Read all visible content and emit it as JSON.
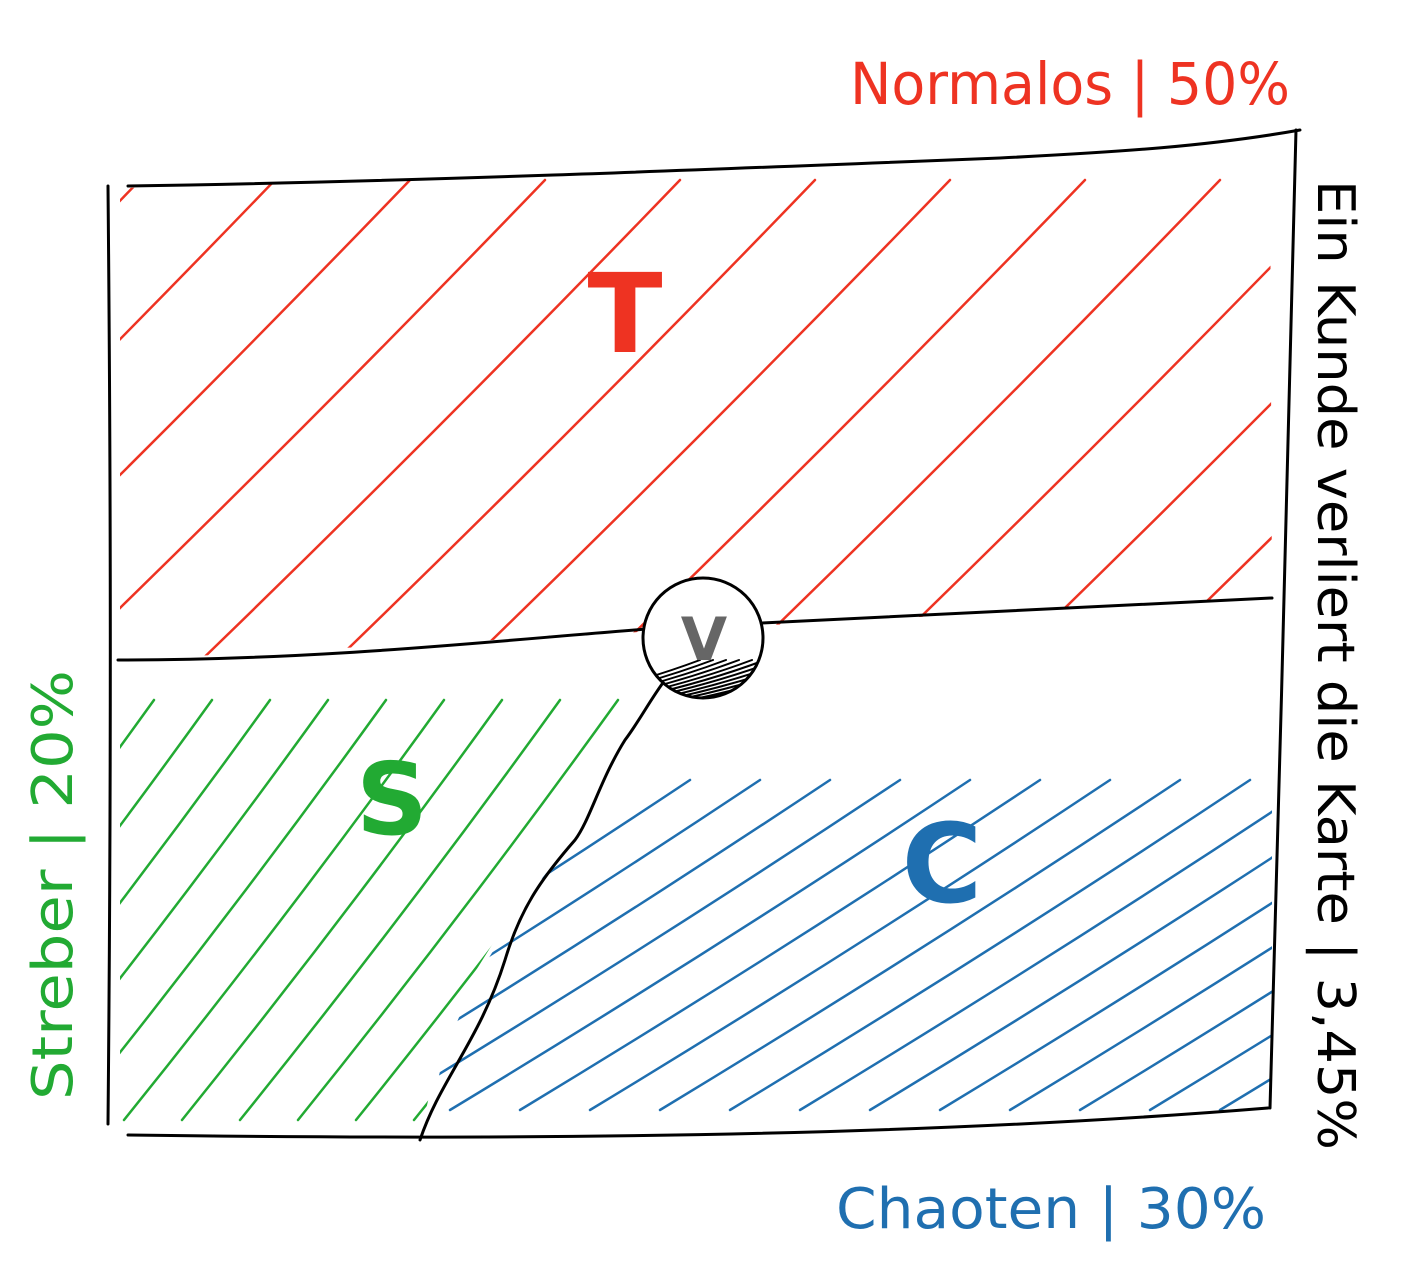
{
  "labels": {
    "top": "Normalos | 50%",
    "left": "Streber | 20%",
    "bottom": "Chaoten | 30%",
    "right": "Ein Kunde verliert die Karte | 3,45%"
  },
  "regions": {
    "top": {
      "letter": "T",
      "color": "#ee3322"
    },
    "left": {
      "letter": "S",
      "color": "#22aa33"
    },
    "right": {
      "letter": "C",
      "color": "#1f6fb0"
    },
    "center": {
      "letter": "V",
      "color": "#666666"
    }
  },
  "colors": {
    "outline": "#000000",
    "label_top": "#ee3322",
    "label_left": "#22aa33",
    "label_bottom": "#1f6fb0",
    "label_right": "#000000"
  }
}
